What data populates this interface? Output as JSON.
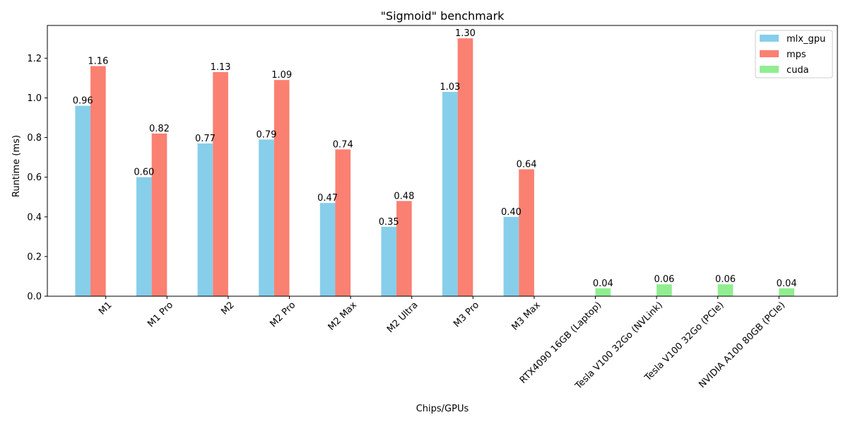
{
  "chart_data": {
    "type": "bar",
    "title": "\"Sigmoid\" benchmark",
    "xlabel": "Chips/GPUs",
    "ylabel": "Runtime (ms)",
    "ylim": [
      0,
      1.365
    ],
    "yticks": [
      0.0,
      0.2,
      0.4,
      0.6,
      0.8,
      1.0,
      1.2
    ],
    "ytick_labels": [
      "0.0",
      "0.2",
      "0.4",
      "0.6",
      "0.8",
      "1.0",
      "1.2"
    ],
    "grid": false,
    "legend_position": "top-right",
    "categories": [
      "M1",
      "M1 Pro",
      "M2",
      "M2 Pro",
      "M2 Max",
      "M2 Ultra",
      "M3 Pro",
      "M3 Max",
      "RTX4090 16GB (Laptop)",
      "Tesla V100 32Go (NVLink)",
      "Tesla V100 32Go (PCIe)",
      "NVIDIA A100 80GB (PCIe)"
    ],
    "series": [
      {
        "name": "mlx_gpu",
        "color": "#87CEEB",
        "values": [
          0.96,
          0.6,
          0.77,
          0.79,
          0.47,
          0.35,
          1.03,
          0.4,
          null,
          null,
          null,
          null
        ],
        "labels": [
          "0.96",
          "0.60",
          "0.77",
          "0.79",
          "0.47",
          "0.35",
          "1.03",
          "0.40",
          null,
          null,
          null,
          null
        ]
      },
      {
        "name": "mps",
        "color": "#FA8072",
        "values": [
          1.16,
          0.82,
          1.13,
          1.09,
          0.74,
          0.48,
          1.3,
          0.64,
          null,
          null,
          null,
          null
        ],
        "labels": [
          "1.16",
          "0.82",
          "1.13",
          "1.09",
          "0.74",
          "0.48",
          "1.30",
          "0.64",
          null,
          null,
          null,
          null
        ]
      },
      {
        "name": "cuda",
        "color": "#90EE90",
        "values": [
          null,
          null,
          null,
          null,
          null,
          null,
          null,
          null,
          0.04,
          0.06,
          0.06,
          0.04
        ],
        "labels": [
          null,
          null,
          null,
          null,
          null,
          null,
          null,
          null,
          "0.04",
          "0.06",
          "0.06",
          "0.04"
        ]
      }
    ]
  }
}
